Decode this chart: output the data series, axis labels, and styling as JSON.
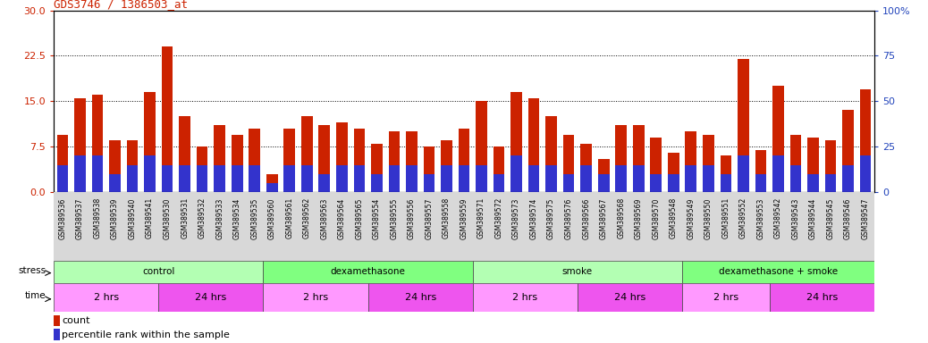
{
  "title": "GDS3746 / 1386503_at",
  "ylim_left": [
    0,
    30
  ],
  "ylim_right": [
    0,
    100
  ],
  "yticks_left": [
    0,
    7.5,
    15,
    22.5,
    30
  ],
  "yticks_right": [
    0,
    25,
    50,
    75,
    100
  ],
  "bar_color": "#cc2200",
  "blue_color": "#3333cc",
  "bg_color": "#ffffff",
  "samples": [
    "GSM389536",
    "GSM389537",
    "GSM389538",
    "GSM389539",
    "GSM389540",
    "GSM389541",
    "GSM389530",
    "GSM389531",
    "GSM389532",
    "GSM389533",
    "GSM389534",
    "GSM389535",
    "GSM389560",
    "GSM389561",
    "GSM389562",
    "GSM389563",
    "GSM389564",
    "GSM389565",
    "GSM389554",
    "GSM389555",
    "GSM389556",
    "GSM389557",
    "GSM389558",
    "GSM389559",
    "GSM389571",
    "GSM389572",
    "GSM389573",
    "GSM389574",
    "GSM389575",
    "GSM389576",
    "GSM389566",
    "GSM389567",
    "GSM389568",
    "GSM389569",
    "GSM389570",
    "GSM389548",
    "GSM389549",
    "GSM389550",
    "GSM389551",
    "GSM389552",
    "GSM389553",
    "GSM389542",
    "GSM389543",
    "GSM389544",
    "GSM389545",
    "GSM389546",
    "GSM389547"
  ],
  "counts": [
    9.5,
    15.5,
    16.0,
    8.5,
    8.5,
    16.5,
    24.0,
    12.5,
    7.5,
    11.0,
    9.5,
    10.5,
    3.0,
    10.5,
    12.5,
    11.0,
    11.5,
    10.5,
    8.0,
    10.0,
    10.0,
    7.5,
    8.5,
    10.5,
    15.0,
    7.5,
    16.5,
    15.5,
    12.5,
    9.5,
    8.0,
    5.5,
    11.0,
    11.0,
    9.0,
    6.5,
    10.0,
    9.5,
    6.0,
    22.0,
    7.0,
    17.5,
    9.5,
    9.0,
    8.5,
    13.5,
    17.0
  ],
  "percentiles_pct": [
    15,
    20,
    20,
    10,
    15,
    20,
    15,
    15,
    15,
    15,
    15,
    15,
    5,
    15,
    15,
    10,
    15,
    15,
    10,
    15,
    15,
    10,
    15,
    15,
    15,
    10,
    20,
    15,
    15,
    10,
    15,
    10,
    15,
    15,
    10,
    10,
    15,
    15,
    10,
    20,
    10,
    20,
    15,
    10,
    10,
    15,
    20
  ],
  "stress_groups": [
    {
      "label": "control",
      "start": 0,
      "end": 12,
      "color": "#b3ffb3"
    },
    {
      "label": "dexamethasone",
      "start": 12,
      "end": 24,
      "color": "#80ff80"
    },
    {
      "label": "smoke",
      "start": 24,
      "end": 36,
      "color": "#b3ffb3"
    },
    {
      "label": "dexamethasone + smoke",
      "start": 36,
      "end": 47,
      "color": "#80ff80"
    }
  ],
  "time_groups": [
    {
      "label": "2 hrs",
      "start": 0,
      "end": 6,
      "color": "#ff99ff"
    },
    {
      "label": "24 hrs",
      "start": 6,
      "end": 12,
      "color": "#ee55ee"
    },
    {
      "label": "2 hrs",
      "start": 12,
      "end": 18,
      "color": "#ff99ff"
    },
    {
      "label": "24 hrs",
      "start": 18,
      "end": 24,
      "color": "#ee55ee"
    },
    {
      "label": "2 hrs",
      "start": 24,
      "end": 30,
      "color": "#ff99ff"
    },
    {
      "label": "24 hrs",
      "start": 30,
      "end": 36,
      "color": "#ee55ee"
    },
    {
      "label": "2 hrs",
      "start": 36,
      "end": 41,
      "color": "#ff99ff"
    },
    {
      "label": "24 hrs",
      "start": 41,
      "end": 47,
      "color": "#ee55ee"
    }
  ],
  "label_bg_color": "#d8d8d8"
}
